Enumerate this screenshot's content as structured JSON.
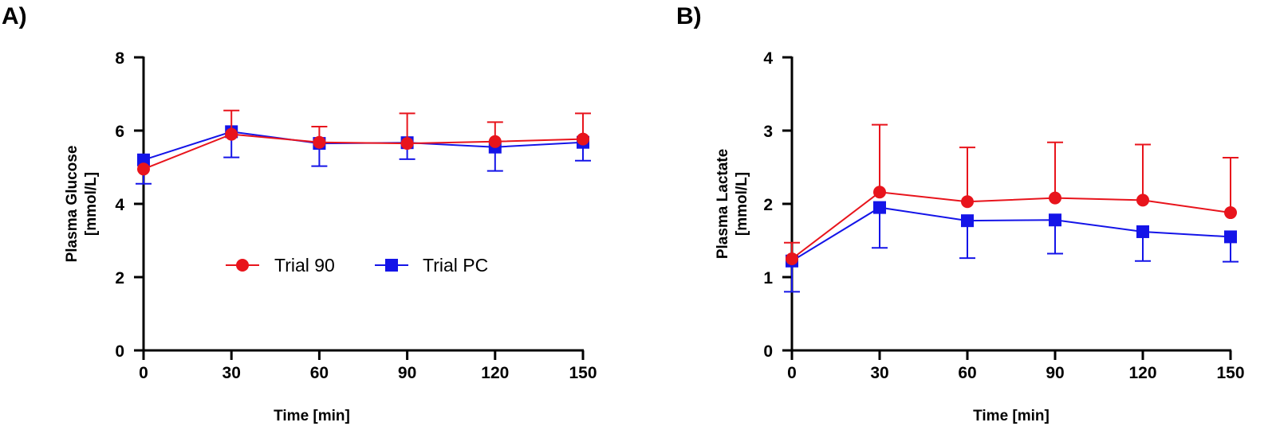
{
  "panels": [
    {
      "panel_label": "A)",
      "ylabel_line1": "Plasma Glucose",
      "ylabel_line2": "[mmol/L]",
      "xlabel": "Time [min]"
    },
    {
      "panel_label": "B)",
      "ylabel_line1": "Plasma Lactate",
      "ylabel_line2": "[mmol/L]",
      "xlabel": "Time [min]"
    }
  ],
  "legend": {
    "items": [
      {
        "label": "Trial 90",
        "color": "#e8141c",
        "marker": "circle"
      },
      {
        "label": "Trial PC",
        "color": "#1414e8",
        "marker": "square"
      }
    ]
  },
  "chart_data": [
    {
      "type": "line",
      "title": "",
      "panel": "A)",
      "xlabel": "Time [min]",
      "ylabel": "Plasma Glucose [mmol/L]",
      "x": [
        0,
        30,
        60,
        90,
        120,
        150
      ],
      "xticks": [
        0,
        30,
        60,
        90,
        120,
        150
      ],
      "xlim": [
        0,
        150
      ],
      "yticks": [
        0,
        2,
        4,
        6,
        8
      ],
      "ylim": [
        0,
        8
      ],
      "grid": false,
      "series": [
        {
          "name": "Trial 90",
          "color": "#e8141c",
          "marker": "circle",
          "values": [
            4.95,
            5.9,
            5.68,
            5.65,
            5.7,
            5.77
          ],
          "error_bars": "up",
          "errors": [
            0.0,
            0.65,
            0.43,
            0.82,
            0.53,
            0.7
          ]
        },
        {
          "name": "Trial PC",
          "color": "#1414e8",
          "marker": "square",
          "values": [
            5.2,
            5.97,
            5.65,
            5.67,
            5.55,
            5.68
          ],
          "error_bars": "down",
          "errors": [
            0.65,
            0.7,
            0.62,
            0.45,
            0.65,
            0.5
          ]
        }
      ],
      "legend": {
        "placement": "center"
      }
    },
    {
      "type": "line",
      "title": "",
      "panel": "B)",
      "xlabel": "Time [min]",
      "ylabel": "Plasma Lactate [mmol/L]",
      "x": [
        0,
        30,
        60,
        90,
        120,
        150
      ],
      "xticks": [
        0,
        30,
        60,
        90,
        120,
        150
      ],
      "xlim": [
        0,
        150
      ],
      "yticks": [
        0,
        1,
        2,
        3,
        4
      ],
      "ylim": [
        0,
        4
      ],
      "grid": false,
      "series": [
        {
          "name": "Trial 90",
          "color": "#e8141c",
          "marker": "circle",
          "values": [
            1.25,
            2.16,
            2.03,
            2.08,
            2.05,
            1.88
          ],
          "error_bars": "up",
          "errors": [
            0.22,
            0.92,
            0.74,
            0.76,
            0.76,
            0.75
          ]
        },
        {
          "name": "Trial PC",
          "color": "#1414e8",
          "marker": "square",
          "values": [
            1.22,
            1.95,
            1.77,
            1.78,
            1.62,
            1.55
          ],
          "error_bars": "down",
          "errors": [
            0.42,
            0.55,
            0.51,
            0.46,
            0.4,
            0.34
          ]
        }
      ]
    }
  ]
}
